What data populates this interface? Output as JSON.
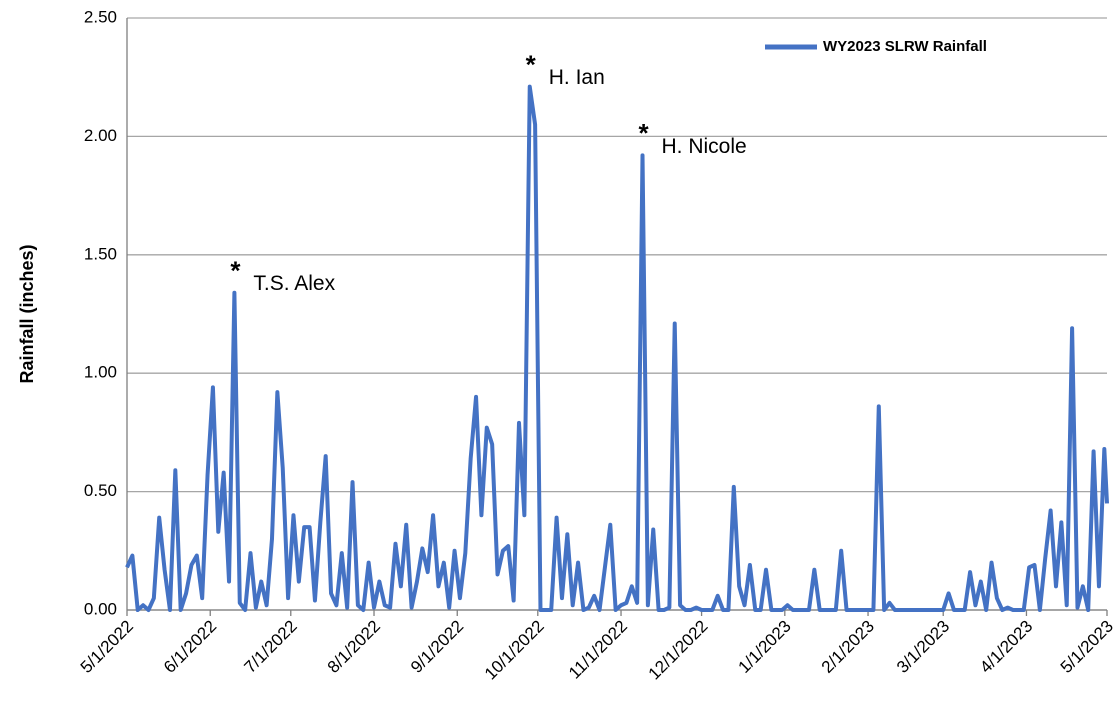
{
  "chart_data": {
    "type": "line",
    "y_label": "Rainfall (inches)",
    "x": [
      "2022-05-01",
      "2022-05-03",
      "2022-05-05",
      "2022-05-07",
      "2022-05-09",
      "2022-05-11",
      "2022-05-13",
      "2022-05-15",
      "2022-05-17",
      "2022-05-19",
      "2022-05-21",
      "2022-05-23",
      "2022-05-25",
      "2022-05-27",
      "2022-05-29",
      "2022-05-31",
      "2022-06-02",
      "2022-06-04",
      "2022-06-06",
      "2022-06-08",
      "2022-06-10",
      "2022-06-12",
      "2022-06-14",
      "2022-06-16",
      "2022-06-18",
      "2022-06-20",
      "2022-06-22",
      "2022-06-24",
      "2022-06-26",
      "2022-06-28",
      "2022-06-30",
      "2022-07-02",
      "2022-07-04",
      "2022-07-06",
      "2022-07-08",
      "2022-07-10",
      "2022-07-12",
      "2022-07-14",
      "2022-07-16",
      "2022-07-18",
      "2022-07-20",
      "2022-07-22",
      "2022-07-24",
      "2022-07-26",
      "2022-07-28",
      "2022-07-30",
      "2022-08-01",
      "2022-08-03",
      "2022-08-05",
      "2022-08-07",
      "2022-08-09",
      "2022-08-11",
      "2022-08-13",
      "2022-08-15",
      "2022-08-17",
      "2022-08-19",
      "2022-08-21",
      "2022-08-23",
      "2022-08-25",
      "2022-08-27",
      "2022-08-29",
      "2022-08-31",
      "2022-09-02",
      "2022-09-04",
      "2022-09-06",
      "2022-09-08",
      "2022-09-10",
      "2022-09-12",
      "2022-09-14",
      "2022-09-16",
      "2022-09-18",
      "2022-09-20",
      "2022-09-22",
      "2022-09-24",
      "2022-09-26",
      "2022-09-28",
      "2022-09-30",
      "2022-10-02",
      "2022-10-04",
      "2022-10-06",
      "2022-10-08",
      "2022-10-10",
      "2022-10-12",
      "2022-10-14",
      "2022-10-16",
      "2022-10-18",
      "2022-10-20",
      "2022-10-22",
      "2022-10-24",
      "2022-10-26",
      "2022-10-28",
      "2022-10-30",
      "2022-11-01",
      "2022-11-03",
      "2022-11-05",
      "2022-11-07",
      "2022-11-09",
      "2022-11-11",
      "2022-11-13",
      "2022-11-15",
      "2022-11-17",
      "2022-11-19",
      "2022-11-21",
      "2022-11-23",
      "2022-11-25",
      "2022-11-27",
      "2022-11-29",
      "2022-12-01",
      "2022-12-03",
      "2022-12-05",
      "2022-12-07",
      "2022-12-09",
      "2022-12-11",
      "2022-12-13",
      "2022-12-15",
      "2022-12-17",
      "2022-12-19",
      "2022-12-21",
      "2022-12-23",
      "2022-12-25",
      "2022-12-27",
      "2022-12-29",
      "2022-12-31",
      "2023-01-02",
      "2023-01-04",
      "2023-01-06",
      "2023-01-08",
      "2023-01-10",
      "2023-01-12",
      "2023-01-14",
      "2023-01-16",
      "2023-01-18",
      "2023-01-20",
      "2023-01-22",
      "2023-01-24",
      "2023-01-26",
      "2023-01-28",
      "2023-01-30",
      "2023-02-01",
      "2023-02-03",
      "2023-02-05",
      "2023-02-07",
      "2023-02-09",
      "2023-02-11",
      "2023-02-13",
      "2023-02-15",
      "2023-02-17",
      "2023-02-19",
      "2023-02-21",
      "2023-02-23",
      "2023-02-25",
      "2023-02-27",
      "2023-03-01",
      "2023-03-03",
      "2023-03-05",
      "2023-03-07",
      "2023-03-09",
      "2023-03-11",
      "2023-03-13",
      "2023-03-15",
      "2023-03-17",
      "2023-03-19",
      "2023-03-21",
      "2023-03-23",
      "2023-03-25",
      "2023-03-27",
      "2023-03-29",
      "2023-03-31",
      "2023-04-02",
      "2023-04-04",
      "2023-04-06",
      "2023-04-08",
      "2023-04-10",
      "2023-04-12",
      "2023-04-14",
      "2023-04-16",
      "2023-04-18",
      "2023-04-20",
      "2023-04-22",
      "2023-04-24",
      "2023-04-26",
      "2023-04-28",
      "2023-04-30",
      "2023-05-01"
    ],
    "series": [
      {
        "name": "WY2023 SLRW Rainfall",
        "color": "#4472c4",
        "values": [
          0.18,
          0.23,
          0,
          0.02,
          0,
          0.05,
          0.39,
          0.17,
          0,
          0.59,
          0,
          0.07,
          0.19,
          0.23,
          0.05,
          0.57,
          0.94,
          0.33,
          0.58,
          0.12,
          1.34,
          0.03,
          0,
          0.24,
          0.01,
          0.12,
          0.02,
          0.3,
          0.92,
          0.6,
          0.05,
          0.4,
          0.12,
          0.35,
          0.35,
          0.04,
          0.37,
          0.65,
          0.07,
          0.02,
          0.24,
          0.01,
          0.54,
          0.02,
          0,
          0.2,
          0.01,
          0.12,
          0.02,
          0.01,
          0.28,
          0.1,
          0.36,
          0.01,
          0.12,
          0.26,
          0.16,
          0.4,
          0.1,
          0.2,
          0.01,
          0.25,
          0.05,
          0.24,
          0.64,
          0.9,
          0.4,
          0.77,
          0.7,
          0.15,
          0.25,
          0.27,
          0.04,
          0.79,
          0.4,
          2.21,
          2.05,
          0,
          0,
          0,
          0.39,
          0.05,
          0.32,
          0.02,
          0.2,
          0,
          0.01,
          0.06,
          0,
          0.18,
          0.36,
          0,
          0.02,
          0.03,
          0.1,
          0.03,
          1.92,
          0.02,
          0.34,
          0,
          0,
          0.01,
          1.21,
          0.02,
          0,
          0,
          0.01,
          0,
          0,
          0,
          0.06,
          0,
          0,
          0.52,
          0.1,
          0.02,
          0.19,
          0,
          0,
          0.17,
          0,
          0,
          0,
          0.02,
          0,
          0,
          0,
          0,
          0.17,
          0,
          0,
          0,
          0,
          0.25,
          0,
          0,
          0,
          0,
          0,
          0,
          0.86,
          0,
          0.03,
          0,
          0,
          0,
          0,
          0,
          0,
          0,
          0,
          0,
          0,
          0.07,
          0,
          0,
          0,
          0.16,
          0.02,
          0.12,
          0,
          0.2,
          0.05,
          0,
          0.01,
          0,
          0,
          0,
          0.18,
          0.19,
          0,
          0.22,
          0.42,
          0.1,
          0.37,
          0.02,
          1.19,
          0.01,
          0.1,
          0,
          0.67,
          0.1,
          0.68,
          0.45
        ]
      }
    ],
    "xlim": [
      "2022-05-01",
      "2023-05-01"
    ],
    "xticks": [
      {
        "value": "2022-05-01",
        "label": "5/1/2022"
      },
      {
        "value": "2022-06-01",
        "label": "6/1/2022"
      },
      {
        "value": "2022-07-01",
        "label": "7/1/2022"
      },
      {
        "value": "2022-08-01",
        "label": "8/1/2022"
      },
      {
        "value": "2022-09-01",
        "label": "9/1/2022"
      },
      {
        "value": "2022-10-01",
        "label": "10/1/2022"
      },
      {
        "value": "2022-11-01",
        "label": "11/1/2022"
      },
      {
        "value": "2022-12-01",
        "label": "12/1/2022"
      },
      {
        "value": "2023-01-01",
        "label": "1/1/2023"
      },
      {
        "value": "2023-02-01",
        "label": "2/1/2023"
      },
      {
        "value": "2023-03-01",
        "label": "3/1/2023"
      },
      {
        "value": "2023-04-01",
        "label": "4/1/2023"
      },
      {
        "value": "2023-05-01",
        "label": "5/1/2023"
      }
    ],
    "ylim": [
      0,
      2.5
    ],
    "yticks": [
      {
        "value": 0,
        "label": "0.00"
      },
      {
        "value": 0.5,
        "label": "0.50"
      },
      {
        "value": 1,
        "label": "1.00"
      },
      {
        "value": 1.5,
        "label": "1.50"
      },
      {
        "value": 2,
        "label": "2.00"
      },
      {
        "value": 2.5,
        "label": "2.50"
      }
    ],
    "grid": true,
    "legend": "top-right",
    "annotations": [
      {
        "marker": "*",
        "text": "T.S. Alex",
        "x": "2022-06-10",
        "y": 1.34
      },
      {
        "marker": "*",
        "text": "H. Ian",
        "x": "2022-09-28",
        "y": 2.21
      },
      {
        "marker": "*",
        "text": "H. Nicole",
        "x": "2022-11-09",
        "y": 1.92
      }
    ]
  }
}
